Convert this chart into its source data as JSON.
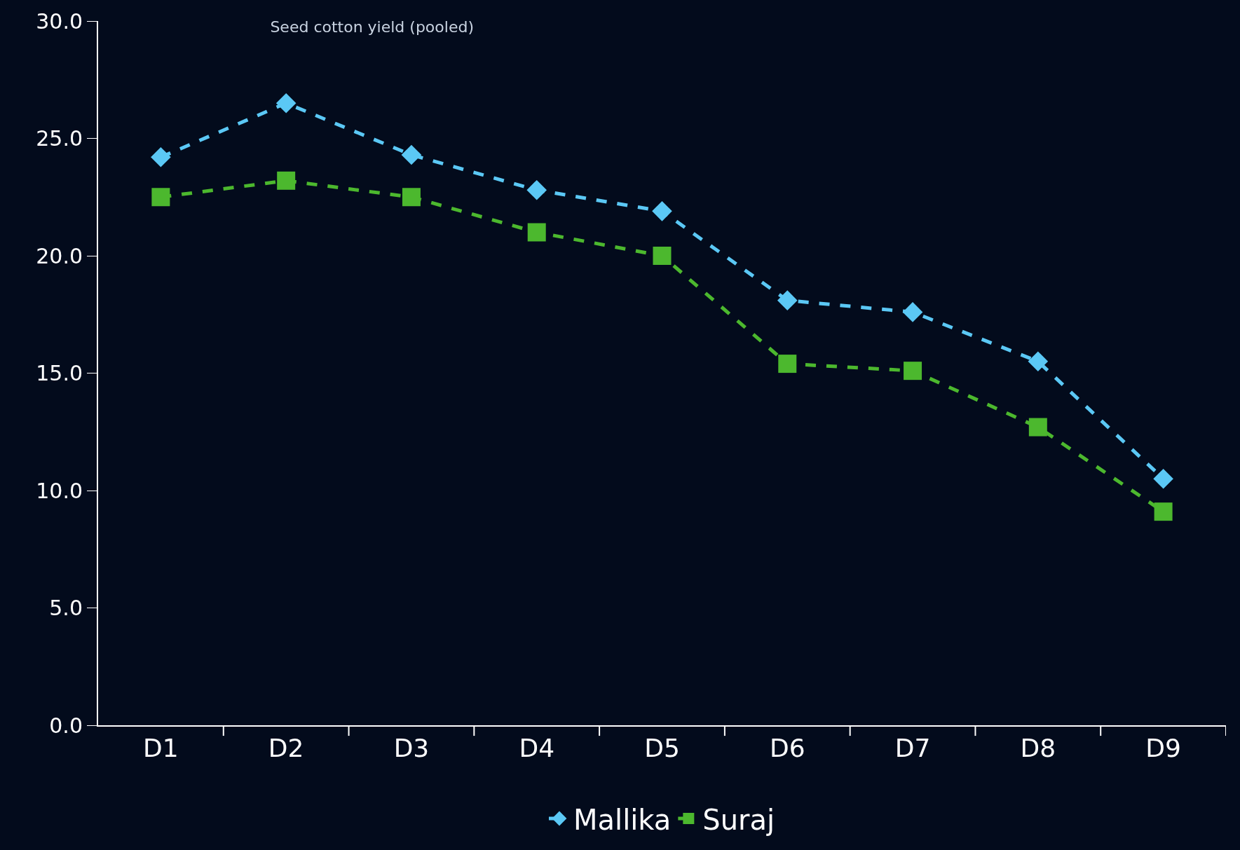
{
  "chart_data": {
    "type": "line",
    "title": "Seed cotton yield (pooled)",
    "categories": [
      "D1",
      "D2",
      "D3",
      "D4",
      "D5",
      "D6",
      "D7",
      "D8",
      "D9"
    ],
    "series": [
      {
        "name": "Mallika",
        "color": "#5bc8f5",
        "marker": "diamond",
        "values": [
          24.2,
          26.5,
          24.3,
          22.8,
          21.9,
          18.1,
          17.6,
          15.5,
          10.5
        ]
      },
      {
        "name": "Suraj",
        "color": "#4cb82e",
        "marker": "square",
        "values": [
          22.5,
          23.2,
          22.5,
          21.0,
          20.0,
          15.4,
          15.1,
          12.7,
          9.1
        ]
      }
    ],
    "ylim": [
      0,
      30
    ],
    "yticks": [
      {
        "value": 0,
        "label": "0.0"
      },
      {
        "value": 5,
        "label": "5.0"
      },
      {
        "value": 10,
        "label": "10.0"
      },
      {
        "value": 15,
        "label": "15.0"
      },
      {
        "value": 20,
        "label": "20.0"
      },
      {
        "value": 25,
        "label": "25.0"
      },
      {
        "value": 30,
        "label": "30.0"
      }
    ],
    "grid": false,
    "legend": "bottom",
    "line_style": "dashed"
  }
}
